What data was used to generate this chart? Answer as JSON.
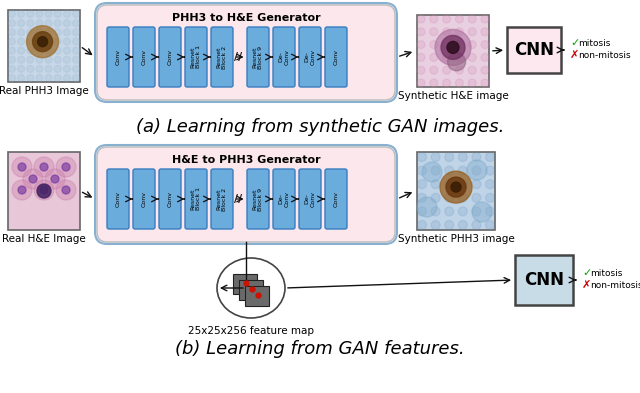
{
  "title_a": "(a) Learning from synthetic GAN images.",
  "title_b": "(b) Learning from GAN features.",
  "label_real_phh3": "Real PHH3 Image",
  "label_real_he": "Real H&E Image",
  "label_synthetic_he": "Synthetic H&E image",
  "label_synthetic_phh3": "Synthetic PHH3 image",
  "label_feature_map": "25x25x256 feature map",
  "label_gen_a": "PHH3 to H&E Generator",
  "label_gen_b": "H&E to PHH3 Generator",
  "label_cnn": "CNN",
  "label_mitosis": "mitosis",
  "label_non_mitosis": "non-mitosis",
  "bg_color": "#ffffff",
  "generator_bg_pink": "#fce8ec",
  "generator_bg_blue": "#ddeeff",
  "generator_border": "#999999",
  "block_color": "#6aacdc",
  "block_border": "#3a7cbf",
  "cnn_bg_a": "#fde8f0",
  "cnn_bg_b": "#c8dce8",
  "cnn_border": "#555555",
  "arrow_color": "#111111",
  "check_color": "#00aa00",
  "cross_color": "#cc0000",
  "title_fontsize": 13,
  "label_fontsize": 7.5,
  "block_fontsize": 5.0
}
